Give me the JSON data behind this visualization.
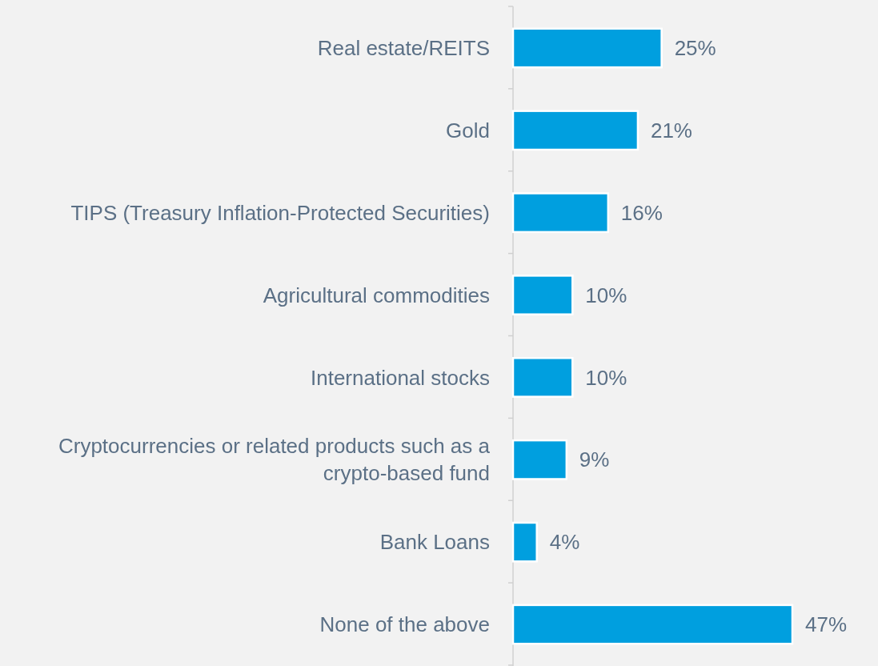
{
  "chart_data": {
    "type": "bar",
    "orientation": "horizontal",
    "categories": [
      "Real estate/REITS",
      "Gold",
      "TIPS (Treasury Inflation-Protected Securities)",
      "Agricultural commodities",
      "International stocks",
      "Cryptocurrencies or related products such as a crypto-based fund",
      "Bank Loans",
      "None of the above"
    ],
    "values": [
      25,
      21,
      16,
      10,
      10,
      9,
      4,
      47
    ],
    "color": "#009fdf",
    "value_labels": [
      "25%",
      "21%",
      "16%",
      "10%",
      "10%",
      "9%",
      "4%",
      "47%"
    ]
  }
}
